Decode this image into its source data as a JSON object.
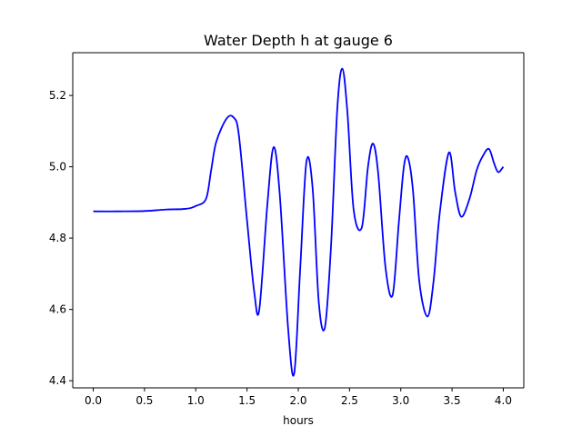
{
  "chart_data": {
    "type": "line",
    "title": "Water Depth h at gauge 6",
    "xlabel": "hours",
    "ylabel": "",
    "xlim": [
      -0.2,
      4.2
    ],
    "ylim": [
      4.38,
      5.32
    ],
    "xticks": [
      0.0,
      0.5,
      1.0,
      1.5,
      2.0,
      2.5,
      3.0,
      3.5,
      4.0
    ],
    "xtick_labels": [
      "0.0",
      "0.5",
      "1.0",
      "1.5",
      "2.0",
      "2.5",
      "3.0",
      "3.5",
      "4.0"
    ],
    "yticks": [
      4.4,
      4.6,
      4.8,
      5.0,
      5.2
    ],
    "ytick_labels": [
      "4.4",
      "4.6",
      "4.8",
      "5.0",
      "5.2"
    ],
    "grid": false,
    "series": [
      {
        "color": "#0000ff",
        "x": [
          0.0,
          0.25,
          0.5,
          0.7,
          0.9,
          1.0,
          1.1,
          1.15,
          1.2,
          1.3,
          1.37,
          1.42,
          1.5,
          1.57,
          1.62,
          1.7,
          1.76,
          1.82,
          1.9,
          1.96,
          2.02,
          2.08,
          2.14,
          2.2,
          2.26,
          2.32,
          2.38,
          2.43,
          2.48,
          2.54,
          2.62,
          2.68,
          2.73,
          2.78,
          2.85,
          2.92,
          2.98,
          3.03,
          3.07,
          3.12,
          3.18,
          3.26,
          3.32,
          3.38,
          3.47,
          3.53,
          3.59,
          3.67,
          3.74,
          3.8,
          3.86,
          3.91,
          3.95,
          4.0
        ],
        "values": [
          4.875,
          4.875,
          4.876,
          4.88,
          4.882,
          4.89,
          4.91,
          4.99,
          5.07,
          5.135,
          5.138,
          5.09,
          4.85,
          4.65,
          4.6,
          4.9,
          5.055,
          4.92,
          4.55,
          4.42,
          4.72,
          5.015,
          4.94,
          4.62,
          4.55,
          4.78,
          5.16,
          5.275,
          5.15,
          4.88,
          4.83,
          5.0,
          5.065,
          4.98,
          4.72,
          4.64,
          4.84,
          5.0,
          5.025,
          4.93,
          4.68,
          4.58,
          4.68,
          4.87,
          5.04,
          4.93,
          4.86,
          4.91,
          4.99,
          5.03,
          5.05,
          5.01,
          4.985,
          5.0
        ]
      }
    ]
  }
}
